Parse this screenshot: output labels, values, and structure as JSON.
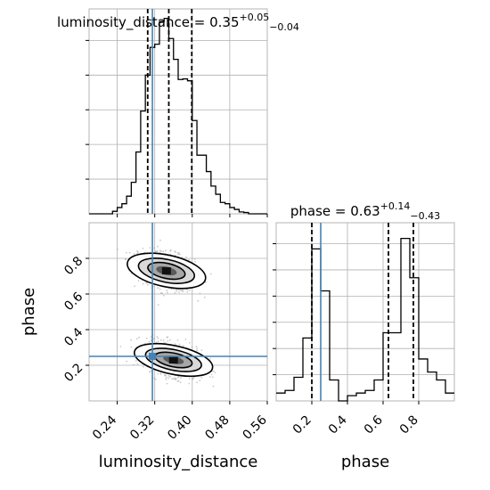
{
  "chart_data": {
    "type": "corner",
    "parameters": [
      "luminosity_distance",
      "phase"
    ],
    "truth": {
      "luminosity_distance": 0.315,
      "phase": 0.25
    },
    "panels": [
      {
        "id": "hist-luminosity-distance",
        "type": "histogram",
        "title": {
          "base": "luminosity_distance = 0.35",
          "sup": "+0.05",
          "sub": "−0.04"
        },
        "xlim": [
          0.18,
          0.56
        ],
        "ylim": [
          0,
          325
        ],
        "quantiles": [
          0.305,
          0.35,
          0.399
        ],
        "bin_edges": [
          0.18,
          0.19,
          0.2,
          0.21,
          0.22,
          0.23,
          0.24,
          0.25,
          0.26,
          0.27,
          0.28,
          0.29,
          0.3,
          0.31,
          0.32,
          0.33,
          0.34,
          0.35,
          0.36,
          0.37,
          0.38,
          0.39,
          0.4,
          0.41,
          0.42,
          0.43,
          0.44,
          0.45,
          0.46,
          0.47,
          0.48,
          0.49,
          0.5,
          0.51,
          0.52,
          0.53,
          0.54,
          0.55,
          0.56
        ],
        "counts": [
          0,
          0,
          0,
          0,
          0,
          4,
          10,
          16,
          28,
          50,
          98,
          163,
          220,
          264,
          269,
          305,
          310,
          278,
          245,
          213,
          214,
          211,
          148,
          93,
          93,
          67,
          44,
          31,
          18,
          16,
          10,
          7,
          3,
          2,
          0,
          0,
          0,
          0
        ]
      },
      {
        "id": "joint-luminosity-distance-phase",
        "type": "2d-density",
        "xlim": [
          0.18,
          0.56
        ],
        "ylim": [
          0.0,
          1.0
        ],
        "xticks": [
          "0.24",
          "0.32",
          "0.40",
          "0.48",
          "0.56"
        ],
        "yticks": [
          "0.2",
          "0.4",
          "0.6",
          "0.8"
        ],
        "xlabel": "luminosity_distance",
        "ylabel": "phase",
        "modes": [
          {
            "center": [
              0.345,
              0.73
            ],
            "spread": [
              0.03,
              0.05
            ]
          },
          {
            "center": [
              0.36,
              0.23
            ],
            "spread": [
              0.03,
              0.045
            ]
          }
        ]
      },
      {
        "id": "hist-phase",
        "type": "histogram",
        "title": {
          "base": "phase = 0.63",
          "sup": "+0.14",
          "sub": "−0.43"
        },
        "xlim": [
          0.0,
          1.0
        ],
        "ylim": [
          0,
          340
        ],
        "quantiles": [
          0.2,
          0.63,
          0.77
        ],
        "bin_edges": [
          0.0,
          0.05,
          0.1,
          0.15,
          0.2,
          0.25,
          0.3,
          0.35,
          0.4,
          0.45,
          0.5,
          0.55,
          0.6,
          0.65,
          0.7,
          0.75,
          0.8,
          0.85,
          0.9,
          0.95,
          1.0
        ],
        "counts": [
          15,
          20,
          45,
          120,
          290,
          210,
          40,
          0,
          10,
          15,
          20,
          40,
          130,
          130,
          310,
          235,
          80,
          55,
          40,
          15
        ],
        "xticks": [
          "0.2",
          "0.4",
          "0.6",
          "0.8"
        ],
        "xlabel": "phase"
      }
    ]
  }
}
